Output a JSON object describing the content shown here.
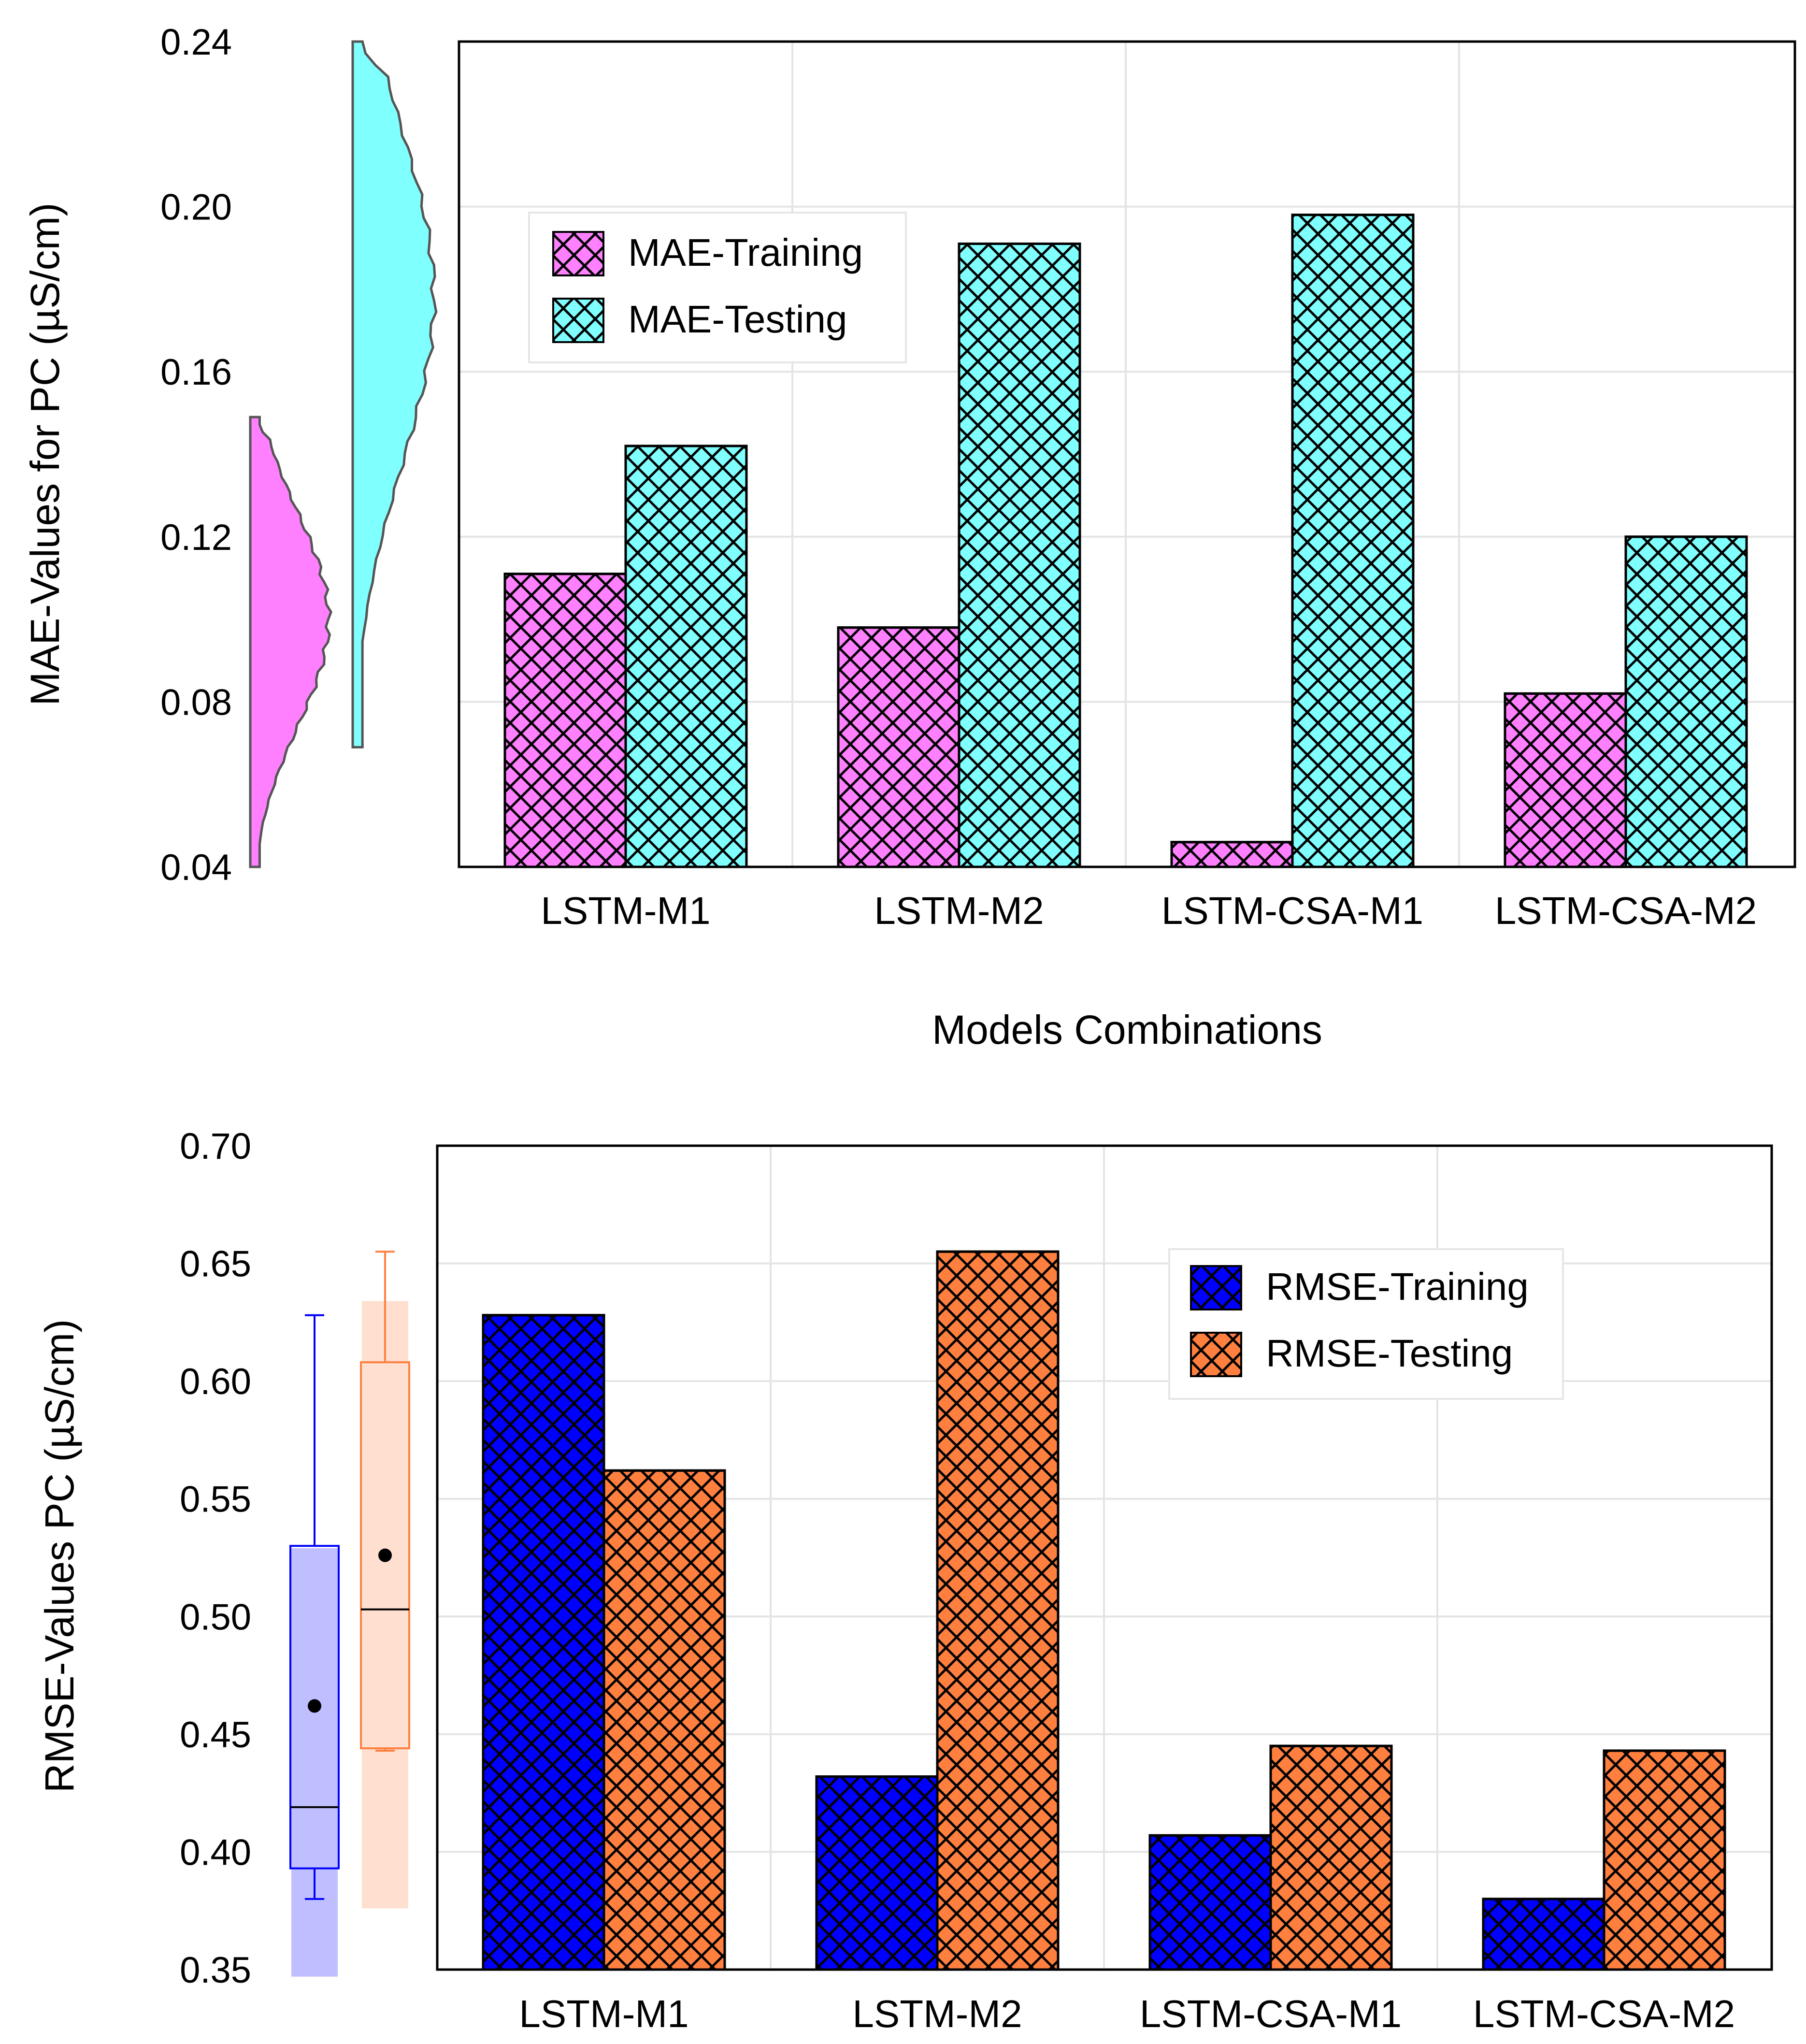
{
  "chart_data": [
    {
      "type": "bar",
      "title": "",
      "ylabel": "MAE-Values for  PC (µS/cm)",
      "xlabel": "Models Combinations",
      "ylim": [
        0.04,
        0.24
      ],
      "yticks": [
        0.04,
        0.08,
        0.12,
        0.16,
        0.2,
        0.24
      ],
      "ytick_labels": [
        "0.04",
        "0.08",
        "0.12",
        "0.16",
        "0.20",
        "0.24"
      ],
      "categories": [
        "LSTM-M1",
        "LSTM-M2",
        "LSTM-CSA-M1",
        "LSTM-CSA-M2"
      ],
      "grid": true,
      "legend_position": "top-left",
      "series": [
        {
          "name": "MAE-Training",
          "color": "#ff80ff",
          "values": [
            0.111,
            0.098,
            0.046,
            0.082
          ]
        },
        {
          "name": "MAE-Testing",
          "color": "#80ffff",
          "values": [
            0.142,
            0.191,
            0.198,
            0.12
          ]
        }
      ],
      "side_plot": {
        "type": "half-violin",
        "series": [
          {
            "name": "MAE-Training",
            "color": "#ff80ff",
            "range": [
              0.04,
              0.149
            ]
          },
          {
            "name": "MAE-Testing",
            "color": "#80ffff",
            "range": [
              0.069,
              0.24
            ]
          }
        ]
      }
    },
    {
      "type": "bar",
      "title": "",
      "ylabel": "RMSE-Values PC (µS/cm)",
      "xlabel": "",
      "ylim": [
        0.35,
        0.7
      ],
      "yticks": [
        0.35,
        0.4,
        0.45,
        0.5,
        0.55,
        0.6,
        0.65,
        0.7
      ],
      "ytick_labels": [
        "0.35",
        "0.40",
        "0.45",
        "0.50",
        "0.55",
        "0.60",
        "0.65",
        "0.70"
      ],
      "categories": [
        "LSTM-M1",
        "LSTM-M2",
        "LSTM-CSA-M1",
        "LSTM-CSA-M2"
      ],
      "grid": true,
      "legend_position": "top-right",
      "series": [
        {
          "name": "RMSE-Training",
          "color": "#0000ff",
          "values": [
            0.628,
            0.432,
            0.407,
            0.38
          ]
        },
        {
          "name": "RMSE-Testing",
          "color": "#ff7f3f",
          "values": [
            0.562,
            0.655,
            0.445,
            0.443
          ]
        }
      ],
      "side_plot": {
        "type": "box",
        "series": [
          {
            "name": "RMSE-Training",
            "color": "#0000ff",
            "whisker_low": 0.38,
            "q1": 0.393,
            "median": 0.419,
            "q3": 0.53,
            "whisker_high": 0.628,
            "mean": 0.462,
            "band": [
              0.347,
              0.529
            ]
          },
          {
            "name": "RMSE-Testing",
            "color": "#ff7f3f",
            "whisker_low": 0.443,
            "q1": 0.444,
            "median": 0.503,
            "q3": 0.608,
            "whisker_high": 0.655,
            "mean": 0.526,
            "band": [
              0.376,
              0.634
            ]
          }
        ]
      }
    }
  ]
}
